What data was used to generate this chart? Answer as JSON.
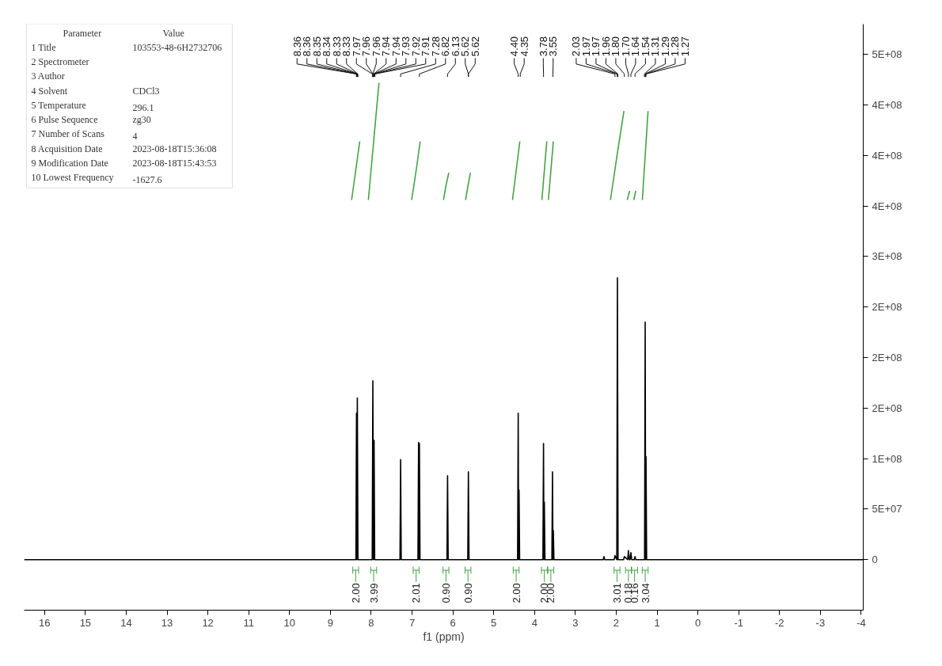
{
  "chart_data": {
    "type": "line",
    "xlabel": "f1 (ppm)",
    "xlim": [
      16.5,
      -4.05
    ],
    "xticks": [
      16,
      15,
      14,
      13,
      12,
      11,
      10,
      9,
      8,
      7,
      6,
      5,
      4,
      3,
      2,
      1,
      0,
      -1,
      -2,
      -3,
      -4
    ],
    "ylim": [
      -50000000,
      530000000
    ],
    "yticks": [
      0,
      {
        "value": 50000000,
        "label": "5E+07"
      },
      {
        "value": 100000000,
        "label": "1E+08"
      },
      {
        "value": 150000000,
        "label": "2E+08"
      },
      {
        "value": 200000000,
        "label": "2E+08"
      },
      {
        "value": 250000000,
        "label": "2E+08"
      },
      {
        "value": 300000000,
        "label": "3E+08"
      },
      {
        "value": 350000000,
        "label": "4E+08"
      },
      {
        "value": 400000000,
        "label": "4E+08"
      },
      {
        "value": 450000000,
        "label": "4E+08"
      },
      {
        "value": 500000000,
        "label": "5E+08"
      }
    ],
    "grid": false,
    "series": [
      {
        "color": "#000000",
        "x": [
          16.5,
          8.375,
          8.36,
          8.35,
          8.34,
          8.325,
          7.975,
          7.96,
          7.945,
          7.93,
          7.915,
          7.295,
          7.28,
          7.265,
          6.855,
          6.84,
          6.83,
          6.82,
          6.805,
          6.145,
          6.13,
          6.115,
          5.635,
          5.62,
          5.605,
          4.415,
          4.4,
          4.39,
          4.38,
          4.365,
          3.795,
          3.78,
          3.77,
          3.76,
          3.745,
          3.575,
          3.56,
          3.55,
          3.54,
          3.525,
          2.32,
          2.3,
          2.28,
          2.05,
          2.03,
          1.985,
          1.97,
          1.955,
          1.82,
          1.8,
          1.72,
          1.7,
          1.68,
          1.66,
          1.64,
          1.62,
          1.56,
          1.54,
          1.52,
          1.305,
          1.29,
          1.28,
          1.27,
          1.255,
          -4.05
        ],
        "values": [
          0,
          0,
          145000000,
          0,
          160000000,
          0,
          0,
          177000000,
          0,
          118000000,
          0,
          0,
          99000000,
          0,
          0,
          116000000,
          0,
          115000000,
          0,
          0,
          83000000,
          0,
          0,
          87000000,
          0,
          0,
          145000000,
          0,
          69000000,
          0,
          0,
          115000000,
          0,
          57000000,
          0,
          0,
          87000000,
          0,
          29000000,
          0,
          0,
          3000000,
          0,
          0,
          4000000,
          0,
          279000000,
          0,
          0,
          3000000,
          0,
          9000000,
          0,
          0,
          7000000,
          0,
          0,
          3000000,
          0,
          0,
          235000000,
          0,
          102000000,
          0,
          0
        ]
      },
      {
        "color": "#44a144",
        "x": [
          8.48,
          8.38,
          8.28,
          8.18,
          8.07,
          7.94,
          7.81,
          7.4,
          7.01,
          6.9,
          6.8,
          6.5,
          6.23,
          6.17,
          6.1,
          5.9,
          5.69,
          5.63,
          5.57,
          5.0,
          4.54,
          4.45,
          4.36,
          4.1,
          3.82,
          3.76,
          3.7,
          3.68,
          3.66,
          3.6,
          3.54,
          2.8,
          2.14,
          1.98,
          1.81,
          1.77,
          1.73,
          1.67,
          1.62,
          1.57,
          1.52,
          1.44,
          1.36,
          1.29,
          1.22
        ],
        "values": [
          356000000,
          385000000,
          414000000,
          null,
          356000000,
          414000000,
          472000000,
          null,
          356000000,
          385000000,
          414000000,
          null,
          356000000,
          370000000,
          383000000,
          null,
          356000000,
          370000000,
          383000000,
          null,
          356000000,
          385000000,
          414000000,
          null,
          356000000,
          385000000,
          414000000,
          null,
          356000000,
          385000000,
          414000000,
          null,
          356000000,
          400000000,
          444000000,
          null,
          356000000,
          365000000,
          null,
          356000000,
          365000000,
          null,
          356000000,
          400000000,
          444000000
        ]
      }
    ],
    "annotations": [
      {
        "text": "2.00",
        "x": 8.38
      },
      {
        "text": "3.99",
        "x": 7.94
      },
      {
        "text": "2.01",
        "x": 6.9
      },
      {
        "text": "0.90",
        "x": 6.17
      },
      {
        "text": "0.90",
        "x": 5.63
      },
      {
        "text": "2.00",
        "x": 4.45
      },
      {
        "text": "2.00",
        "x": 3.76
      },
      {
        "text": "2.00",
        "x": 3.6
      },
      {
        "text": "3.01",
        "x": 1.98
      },
      {
        "text": "0.18",
        "x": 1.7
      },
      {
        "text": "0.16",
        "x": 1.55
      },
      {
        "text": "3.04",
        "x": 1.29
      },
      "Parameter\tValue",
      "1 Title\t103553-48-6H2732706",
      "2 Spectrometer",
      "3 Author",
      "4 Solvent\tCDCl3",
      "5 Temperature\t296.1",
      "6 Pulse Sequence\tzg30",
      "7 Number of Scans\t4",
      "8 Acquisition Date\t2023-08-18T15:36:08",
      "9 Modification Date\t2023-08-18T15:43:53",
      "10 Lowest Frequency\t-1627.6",
      {
        "text": "8.36",
        "x": 8.36
      },
      {
        "text": "8.36",
        "x": 8.36
      },
      {
        "text": "8.35",
        "x": 8.35
      },
      {
        "text": "8.34",
        "x": 8.34
      },
      {
        "text": "8.33",
        "x": 8.33
      },
      {
        "text": "8.33",
        "x": 8.33
      },
      {
        "text": "7.97",
        "x": 7.97
      },
      {
        "text": "7.96",
        "x": 7.96
      },
      {
        "text": "7.96",
        "x": 7.96
      },
      {
        "text": "7.94",
        "x": 7.94
      },
      {
        "text": "7.94",
        "x": 7.94
      },
      {
        "text": "7.93",
        "x": 7.93
      },
      {
        "text": "7.92",
        "x": 7.92
      },
      {
        "text": "7.91",
        "x": 7.91
      },
      {
        "text": "7.28",
        "x": 7.28
      },
      {
        "text": "6.82",
        "x": 6.82
      },
      {
        "text": "6.13",
        "x": 6.13
      },
      {
        "text": "5.62",
        "x": 5.62
      },
      {
        "text": "5.62",
        "x": 5.62
      },
      {
        "text": "4.40",
        "x": 4.4
      },
      {
        "text": "4.35",
        "x": 4.35
      },
      {
        "text": "3.78",
        "x": 3.78
      },
      {
        "text": "3.55",
        "x": 3.55
      },
      {
        "text": "2.03",
        "x": 2.03
      },
      {
        "text": "1.97",
        "x": 1.97
      },
      {
        "text": "1.97",
        "x": 1.97
      },
      {
        "text": "1.96",
        "x": 1.96
      },
      {
        "text": "1.80",
        "x": 1.8
      },
      {
        "text": "1.70",
        "x": 1.7
      },
      {
        "text": "1.64",
        "x": 1.64
      },
      {
        "text": "1.54",
        "x": 1.54
      },
      {
        "text": "1.31",
        "x": 1.31
      },
      {
        "text": "1.29",
        "x": 1.29
      },
      {
        "text": "1.28",
        "x": 1.28
      },
      {
        "text": "1.27",
        "x": 1.27
      }
    ]
  }
}
